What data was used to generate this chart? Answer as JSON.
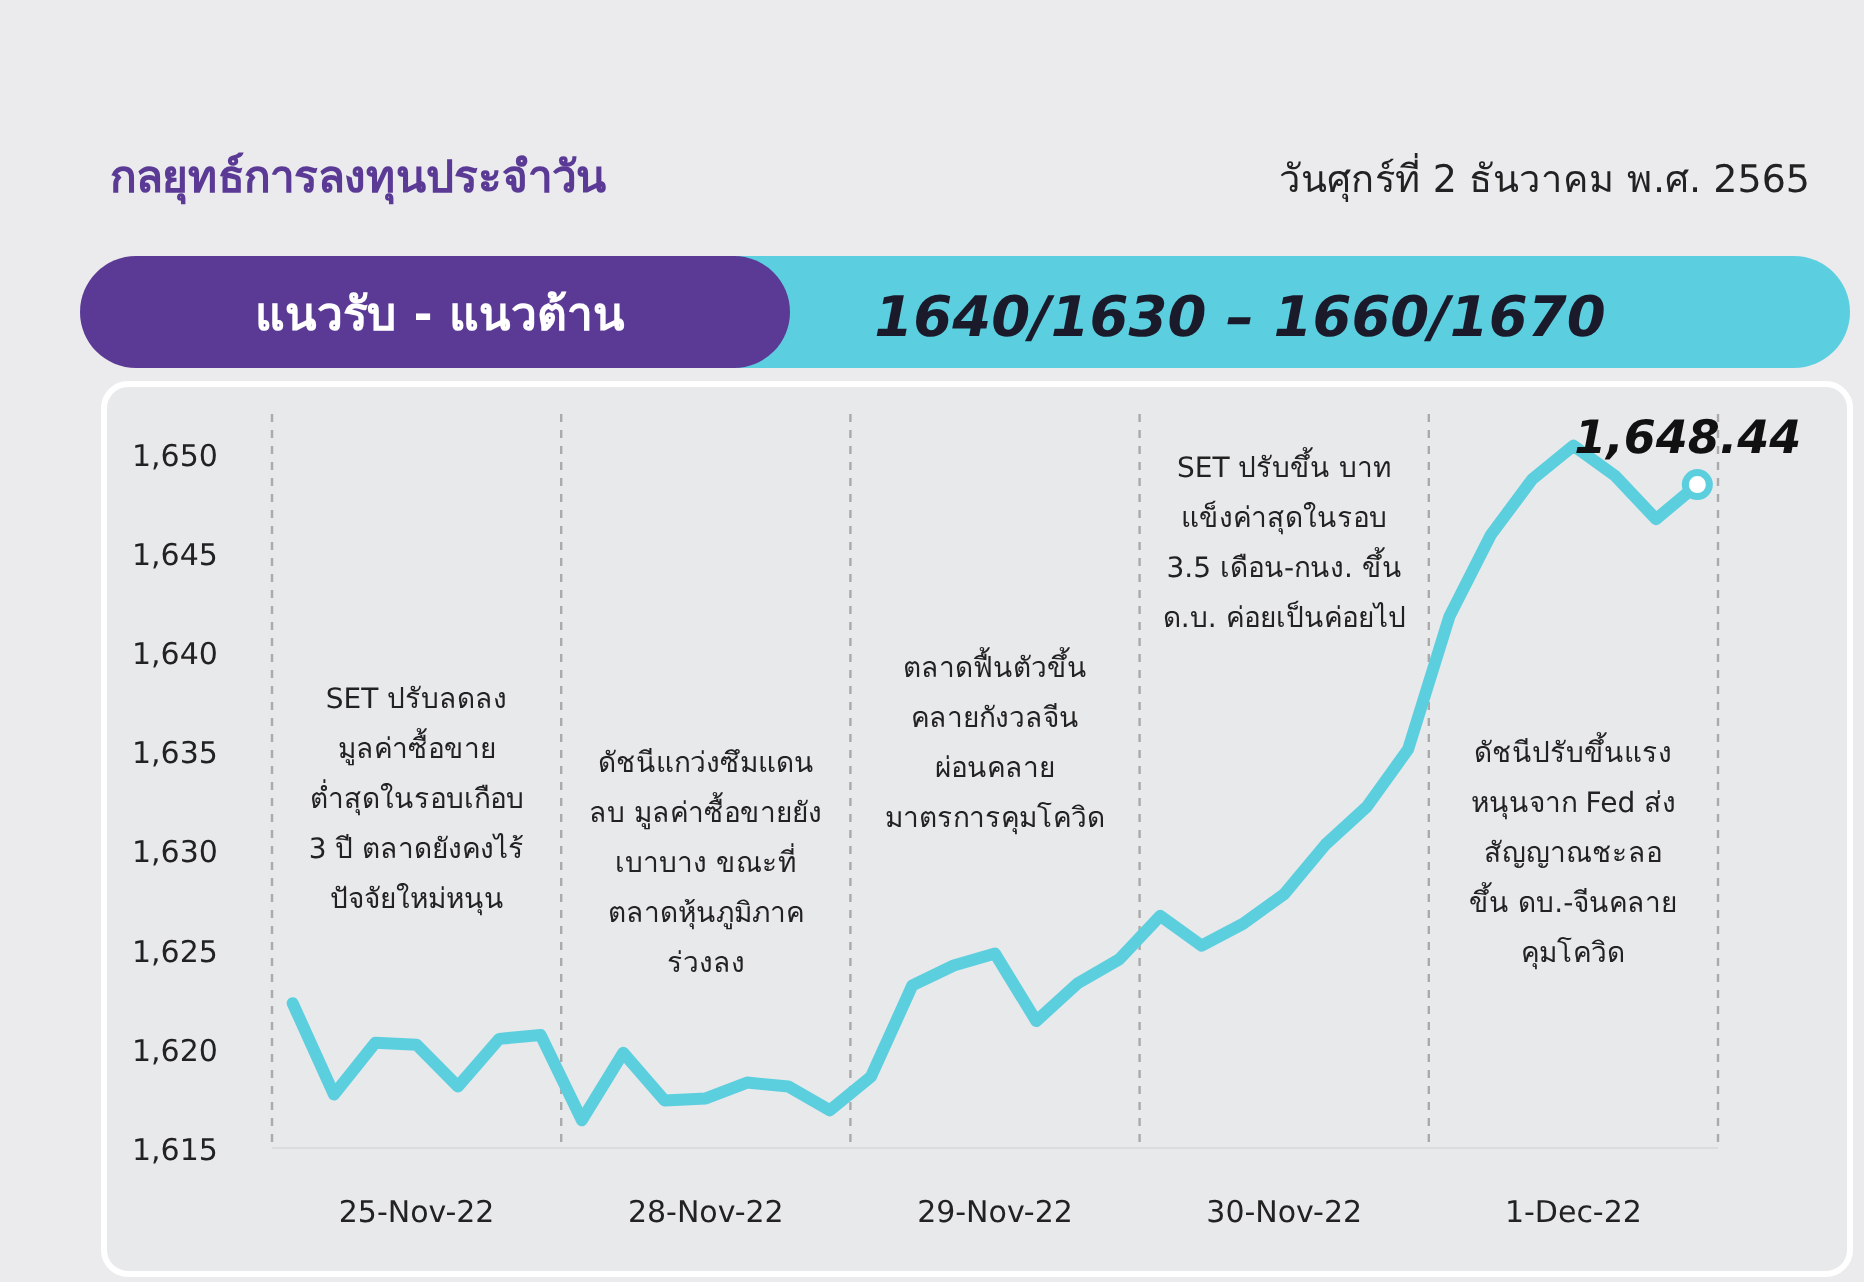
{
  "chart_data": {
    "type": "line",
    "title": "กลยุทธ์การลงทุนประจำวัน",
    "subtitle": "วันศุกร์ที่ 2 ธันวาคม พ.ศ. 2565",
    "annotations": [
      "แนวรับ - แนวต้าน",
      "1640/1630 – 1660/1670",
      "SET ปรับลดลง\nมูลค่าซื้อขาย\nต่ำสุดในรอบเกือบ\n3 ปี ตลาดยังคงไร้\nปัจจัยใหม่หนุน",
      "ดัชนีแกว่งซึมแดน\nลบ มูลค่าซื้อขายยัง\nเบาบาง ขณะที่\nตลาดหุ้นภูมิภาค\nร่วงลง",
      "ตลาดฟื้นตัวขึ้น\nคลายกังวลจีน\nผ่อนคลาย\nมาตรการคุมโควิด",
      "SET ปรับขึ้น บาท\nแข็งค่าสุดในรอบ\n3.5 เดือน-กนง. ขึ้น\nด.บ. ค่อยเป็นค่อยไป",
      "ดัชนีปรับขึ้นแรง\nหนุนจาก Fed ส่ง\nสัญญาณชะลอ\nขึ้น ดบ.-จีนคลาย\nคุมโควิด"
    ],
    "categories": [
      null,
      null,
      null,
      "25-Nov-22",
      null,
      null,
      null,
      null,
      null,
      null,
      "28-Nov-22",
      null,
      null,
      null,
      null,
      null,
      null,
      "29-Nov-22",
      null,
      null,
      null,
      null,
      null,
      null,
      "30-Nov-22",
      null,
      null,
      null,
      null,
      null,
      null,
      "1-Dec-22",
      null,
      null,
      null
    ],
    "series": [
      {
        "color": "#5ccfdf",
        "values": [
          1622.3,
          1617.7,
          1620.3,
          1620.2,
          1618.1,
          1620.5,
          1620.7,
          1616.4,
          1619.8,
          1617.4,
          1617.5,
          1618.3,
          1618.1,
          1616.9,
          1618.6,
          1623.2,
          1624.2,
          1624.8,
          1621.4,
          1623.3,
          1624.5,
          1626.7,
          1625.2,
          1626.3,
          1627.8,
          1630.3,
          1632.2,
          1635.1,
          1641.8,
          1645.9,
          1648.7,
          1650.4,
          1648.9,
          1646.7,
          1648.44
        ],
        "value_labels": [
          null,
          null,
          null,
          null,
          null,
          null,
          null,
          null,
          null,
          null,
          null,
          null,
          null,
          null,
          null,
          null,
          null,
          null,
          null,
          null,
          null,
          null,
          null,
          null,
          null,
          null,
          null,
          null,
          null,
          null,
          null,
          null,
          null,
          null,
          "1,648.44"
        ]
      }
    ],
    "ylim": [
      1615,
      1652
    ],
    "yticks": [
      {
        "value": 1615,
        "label": "1,615"
      },
      {
        "value": 1620,
        "label": "1,620"
      },
      {
        "value": 1625,
        "label": "1,625"
      },
      {
        "value": 1630,
        "label": "1,630"
      },
      {
        "value": 1635,
        "label": "1,635"
      },
      {
        "value": 1640,
        "label": "1,640"
      },
      {
        "value": 1645,
        "label": "1,645"
      },
      {
        "value": 1650,
        "label": "1,650"
      }
    ],
    "grid": false,
    "line_style": "solid"
  }
}
